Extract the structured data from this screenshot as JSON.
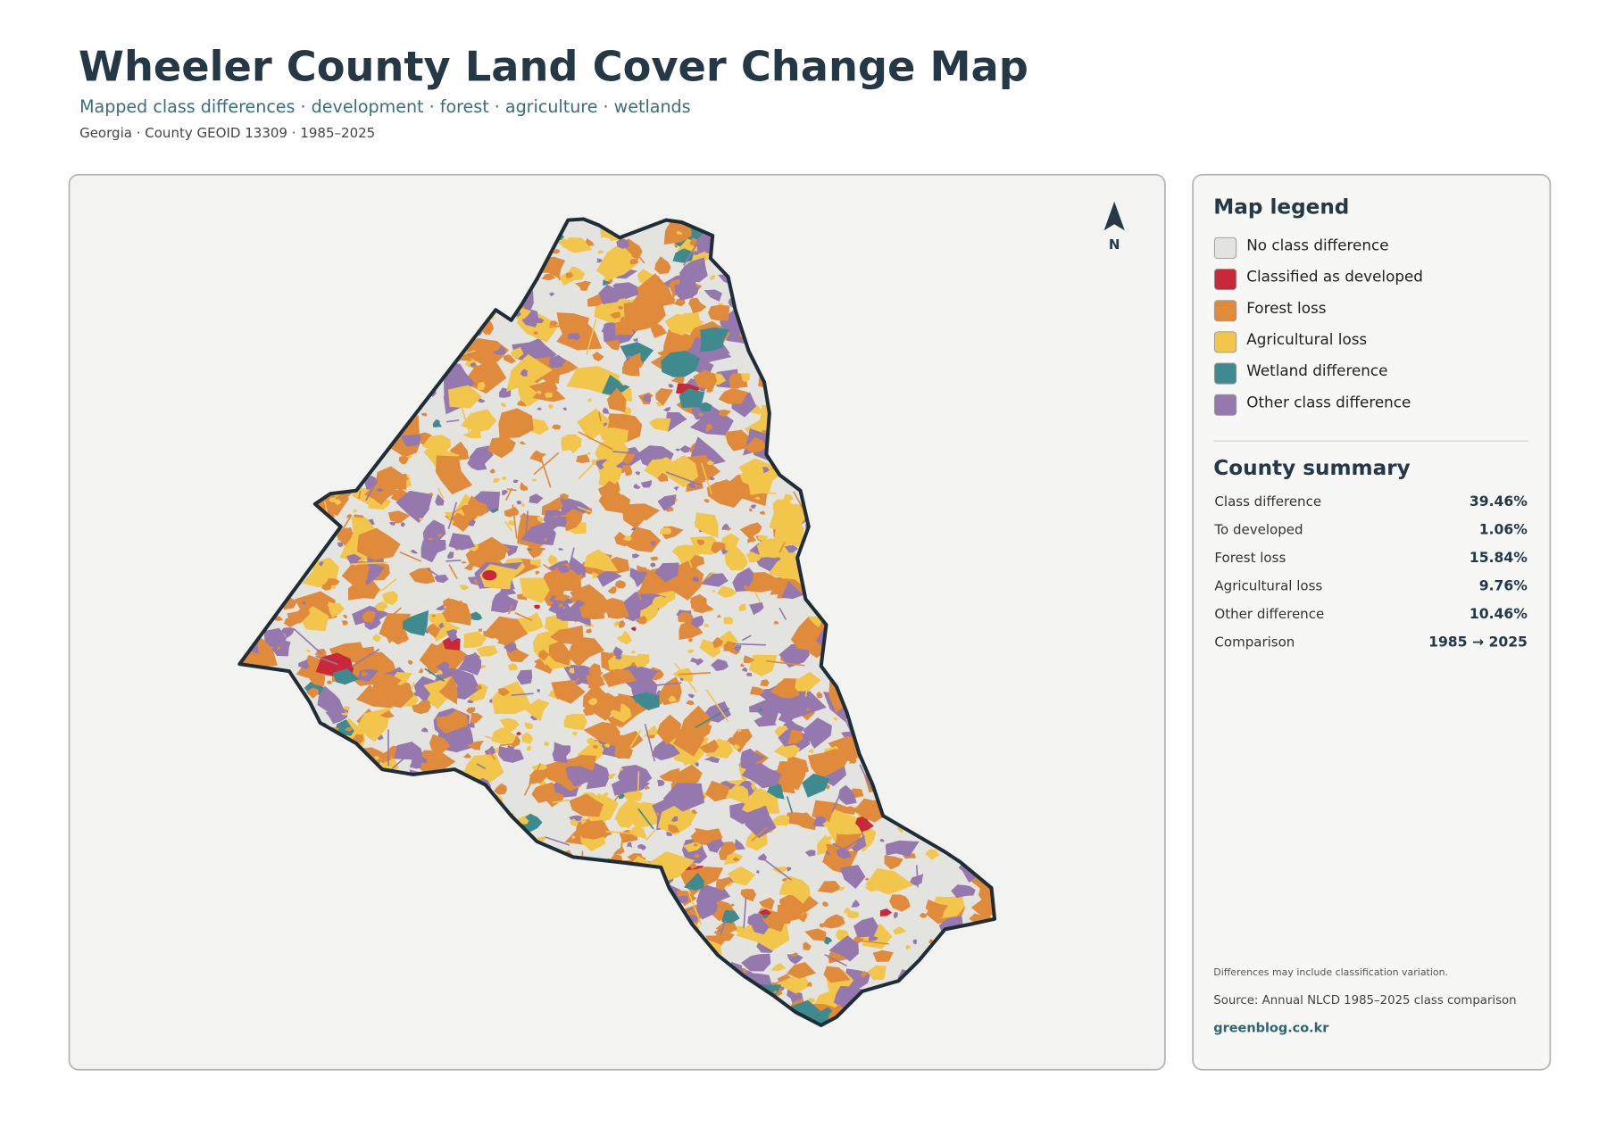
{
  "header": {
    "title": "Wheeler County Land Cover Change Map",
    "subtitle": "Mapped class differences · development · forest · agriculture · wetlands",
    "meta": "Georgia · County GEOID 13309 · 1985–2025"
  },
  "map": {
    "north_label": "N"
  },
  "legend": {
    "title": "Map legend",
    "items": [
      {
        "label": "No class difference",
        "color": "#e3e3e0"
      },
      {
        "label": "Classified as developed",
        "color": "#c8283a"
      },
      {
        "label": "Forest loss",
        "color": "#e08a3c"
      },
      {
        "label": "Agricultural loss",
        "color": "#f2c54b"
      },
      {
        "label": "Wetland difference",
        "color": "#3e8a8f"
      },
      {
        "label": "Other class difference",
        "color": "#9478ae"
      }
    ]
  },
  "summary": {
    "title": "County summary",
    "rows": [
      {
        "label": "Class difference",
        "value": "39.46%"
      },
      {
        "label": "To developed",
        "value": "1.06%"
      },
      {
        "label": "Forest loss",
        "value": "15.84%"
      },
      {
        "label": "Agricultural loss",
        "value": "9.76%"
      },
      {
        "label": "Other difference",
        "value": "10.46%"
      },
      {
        "label": "Comparison",
        "value": "1985 → 2025"
      }
    ]
  },
  "footer": {
    "note": "Differences may include classification variation.",
    "source": "Source: Annual NLCD 1985–2025 class comparison",
    "credit": "greenblog.co.kr"
  }
}
